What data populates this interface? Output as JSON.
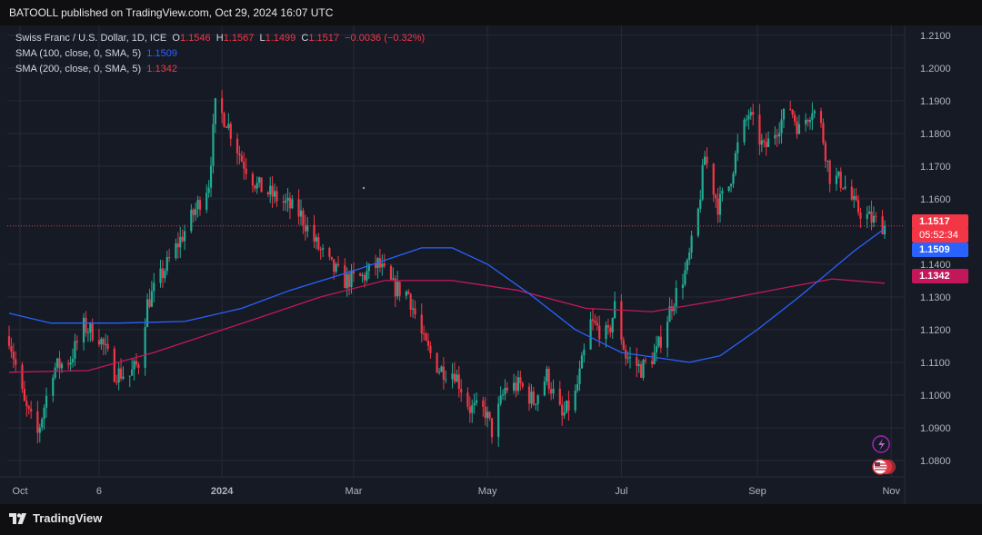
{
  "header": {
    "published_text": "BATOOLL published on TradingView.com, Oct 29, 2024 16:07 UTC"
  },
  "legend": {
    "symbol": "Swiss Franc / U.S. Dollar, 1D, ICE",
    "open_label": "O",
    "open": "1.1546",
    "high_label": "H",
    "high": "1.1567",
    "low_label": "L",
    "low": "1.1499",
    "close_label": "C",
    "close": "1.1517",
    "change": "−0.0036 (−0.32%)",
    "sma100_label": "SMA (100, close, 0, SMA, 5)",
    "sma100_value": "1.1509",
    "sma200_label": "SMA (200, close, 0, SMA, 5)",
    "sma200_value": "1.1342"
  },
  "price_badges": {
    "last": "1.1517",
    "countdown": "05:52:34",
    "sma100": "1.1509",
    "sma200": "1.1342"
  },
  "footer": {
    "brand": "TradingView"
  },
  "colors": {
    "up": "#22ab94",
    "down": "#f23645",
    "sma100": "#2962ff",
    "sma200": "#c2185b",
    "background": "#161a25"
  },
  "chart_data": {
    "type": "candlestick",
    "y_ticks": [
      "1.2100",
      "1.2000",
      "1.1900",
      "1.1800",
      "1.1700",
      "1.1600",
      "1.1400",
      "1.1300",
      "1.1200",
      "1.1100",
      "1.1000",
      "1.0900",
      "1.0800"
    ],
    "ylim": [
      1.075,
      1.213
    ],
    "x_ticks": [
      "Oct",
      "6",
      "2024",
      "Mar",
      "May",
      "Jul",
      "Sep",
      "Nov"
    ],
    "waypoints": [
      [
        "2023-09-26",
        1.118
      ],
      [
        "2023-10-03",
        1.097
      ],
      [
        "2023-10-09",
        1.088
      ],
      [
        "2023-10-16",
        1.108
      ],
      [
        "2023-10-24",
        1.111
      ],
      [
        "2023-10-30",
        1.121
      ],
      [
        "2023-11-06",
        1.118
      ],
      [
        "2023-11-13",
        1.107
      ],
      [
        "2023-11-20",
        1.106
      ],
      [
        "2023-11-24",
        1.11
      ],
      [
        "2023-11-28",
        1.128
      ],
      [
        "2023-12-04",
        1.136
      ],
      [
        "2023-12-11",
        1.145
      ],
      [
        "2023-12-18",
        1.154
      ],
      [
        "2023-12-26",
        1.165
      ],
      [
        "2023-12-29",
        1.188
      ],
      [
        "2024-01-03",
        1.184
      ],
      [
        "2024-01-10",
        1.172
      ],
      [
        "2024-01-17",
        1.164
      ],
      [
        "2024-01-24",
        1.161
      ],
      [
        "2024-01-31",
        1.158
      ],
      [
        "2024-02-06",
        1.155
      ],
      [
        "2024-02-13",
        1.146
      ],
      [
        "2024-02-20",
        1.139
      ],
      [
        "2024-02-26",
        1.135
      ],
      [
        "2024-03-05",
        1.136
      ],
      [
        "2024-03-12",
        1.14
      ],
      [
        "2024-03-19",
        1.133
      ],
      [
        "2024-03-26",
        1.131
      ],
      [
        "2024-04-02",
        1.116
      ],
      [
        "2024-04-09",
        1.108
      ],
      [
        "2024-04-16",
        1.107
      ],
      [
        "2024-04-23",
        1.096
      ],
      [
        "2024-04-30",
        1.095
      ],
      [
        "2024-05-03",
        1.089
      ],
      [
        "2024-05-09",
        1.102
      ],
      [
        "2024-05-16",
        1.103
      ],
      [
        "2024-05-22",
        1.098
      ],
      [
        "2024-05-28",
        1.106
      ],
      [
        "2024-06-04",
        1.093
      ],
      [
        "2024-06-10",
        1.1
      ],
      [
        "2024-06-17",
        1.122
      ],
      [
        "2024-06-25",
        1.118
      ],
      [
        "2024-06-28",
        1.127
      ],
      [
        "2024-07-03",
        1.112
      ],
      [
        "2024-07-10",
        1.108
      ],
      [
        "2024-07-17",
        1.113
      ],
      [
        "2024-07-24",
        1.128
      ],
      [
        "2024-07-31",
        1.139
      ],
      [
        "2024-08-05",
        1.156
      ],
      [
        "2024-08-08",
        1.173
      ],
      [
        "2024-08-14",
        1.158
      ],
      [
        "2024-08-19",
        1.164
      ],
      [
        "2024-08-23",
        1.176
      ],
      [
        "2024-08-28",
        1.186
      ],
      [
        "2024-09-04",
        1.175
      ],
      [
        "2024-09-11",
        1.183
      ],
      [
        "2024-09-16",
        1.188
      ],
      [
        "2024-09-20",
        1.181
      ],
      [
        "2024-09-26",
        1.188
      ],
      [
        "2024-09-30",
        1.182
      ],
      [
        "2024-10-04",
        1.167
      ],
      [
        "2024-10-10",
        1.165
      ],
      [
        "2024-10-16",
        1.157
      ],
      [
        "2024-10-22",
        1.154
      ],
      [
        "2024-10-29",
        1.1517
      ]
    ],
    "sma100": [
      [
        "2023-09-26",
        1.125
      ],
      [
        "2023-10-15",
        1.122
      ],
      [
        "2023-11-15",
        1.122
      ],
      [
        "2023-12-15",
        1.1225
      ],
      [
        "2024-01-10",
        1.1265
      ],
      [
        "2024-02-01",
        1.132
      ],
      [
        "2024-03-01",
        1.138
      ],
      [
        "2024-04-01",
        1.145
      ],
      [
        "2024-04-15",
        1.145
      ],
      [
        "2024-05-01",
        1.14
      ],
      [
        "2024-05-20",
        1.131
      ],
      [
        "2024-06-10",
        1.12
      ],
      [
        "2024-07-01",
        1.113
      ],
      [
        "2024-08-01",
        1.11
      ],
      [
        "2024-08-15",
        1.112
      ],
      [
        "2024-09-01",
        1.12
      ],
      [
        "2024-09-20",
        1.13
      ],
      [
        "2024-10-15",
        1.144
      ],
      [
        "2024-10-29",
        1.1509
      ]
    ],
    "sma200": [
      [
        "2023-09-26",
        1.107
      ],
      [
        "2023-11-01",
        1.1075
      ],
      [
        "2023-12-01",
        1.113
      ],
      [
        "2024-01-15",
        1.123
      ],
      [
        "2024-02-15",
        1.13
      ],
      [
        "2024-03-15",
        1.135
      ],
      [
        "2024-04-15",
        1.135
      ],
      [
        "2024-05-15",
        1.132
      ],
      [
        "2024-06-15",
        1.1265
      ],
      [
        "2024-07-15",
        1.1255
      ],
      [
        "2024-08-15",
        1.129
      ],
      [
        "2024-09-15",
        1.133
      ],
      [
        "2024-10-05",
        1.1355
      ],
      [
        "2024-10-29",
        1.1342
      ]
    ]
  }
}
